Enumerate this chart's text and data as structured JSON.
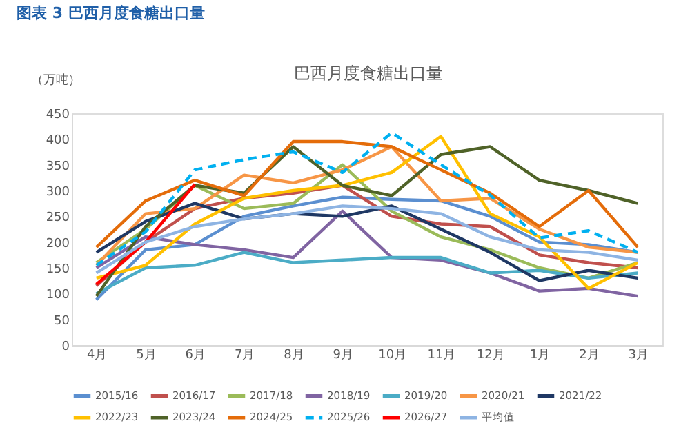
{
  "chart_data": {
    "type": "line",
    "title": "图表 3 巴西月度食糖出口量",
    "subtitle": "巴西月度食糖出口量",
    "ylabel": "（万吨）",
    "categories": [
      "4月",
      "5月",
      "6月",
      "7月",
      "8月",
      "9月",
      "10月",
      "11月",
      "12月",
      "1月",
      "2月",
      "3月"
    ],
    "ylim": [
      0,
      450
    ],
    "yticks": [
      0,
      50,
      100,
      150,
      200,
      250,
      300,
      350,
      400,
      450
    ],
    "grid": false,
    "legend": "bottom",
    "marker": "none",
    "line_style": "solid",
    "series": [
      {
        "name": "2015/16",
        "color": "#5b8fd0",
        "values": [
          88,
          185,
          195,
          250,
          270,
          287,
          283,
          280,
          250,
          200,
          195,
          180
        ]
      },
      {
        "name": "2016/17",
        "color": "#c0504d",
        "values": [
          115,
          200,
          265,
          285,
          295,
          310,
          250,
          235,
          230,
          175,
          160,
          150
        ]
      },
      {
        "name": "2017/18",
        "color": "#9bbb59",
        "values": [
          160,
          225,
          310,
          265,
          275,
          350,
          260,
          210,
          185,
          150,
          130,
          160
        ]
      },
      {
        "name": "2018/19",
        "color": "#8064a2",
        "values": [
          150,
          210,
          195,
          185,
          170,
          260,
          170,
          165,
          140,
          105,
          110,
          95
        ]
      },
      {
        "name": "2019/20",
        "color": "#4bacc6",
        "values": [
          100,
          150,
          155,
          180,
          160,
          165,
          170,
          170,
          140,
          145,
          130,
          140
        ]
      },
      {
        "name": "2020/21",
        "color": "#f79646",
        "values": [
          155,
          255,
          265,
          330,
          315,
          340,
          385,
          280,
          285,
          225,
          190,
          180
        ]
      },
      {
        "name": "2021/22",
        "color": "#1f3864",
        "values": [
          180,
          240,
          275,
          245,
          255,
          250,
          270,
          225,
          180,
          125,
          145,
          130
        ]
      },
      {
        "name": "2022/23",
        "color": "#ffc000",
        "values": [
          130,
          155,
          235,
          285,
          300,
          310,
          335,
          405,
          255,
          210,
          110,
          160
        ]
      },
      {
        "name": "2023/24",
        "color": "#4f6228",
        "values": [
          95,
          230,
          310,
          295,
          385,
          310,
          290,
          370,
          385,
          320,
          300,
          275
        ]
      },
      {
        "name": "2024/25",
        "color": "#e46c0a",
        "values": [
          190,
          280,
          320,
          290,
          395,
          395,
          385,
          340,
          295,
          230,
          300,
          190
        ]
      },
      {
        "name": "2025/26",
        "color": "#00b0f0",
        "line_style": "dashed",
        "values": [
          155,
          220,
          340,
          360,
          375,
          335,
          412,
          350,
          291,
          208,
          222,
          180
        ]
      },
      {
        "name": "2026/27",
        "color": "#ff0000",
        "values": [
          118,
          200,
          312,
          null,
          null,
          null,
          null,
          null,
          null,
          null,
          null,
          null
        ]
      },
      {
        "name": "平均值",
        "color": "#8eb4e3",
        "values": [
          140,
          200,
          230,
          245,
          255,
          270,
          265,
          255,
          210,
          185,
          180,
          165
        ]
      }
    ]
  }
}
